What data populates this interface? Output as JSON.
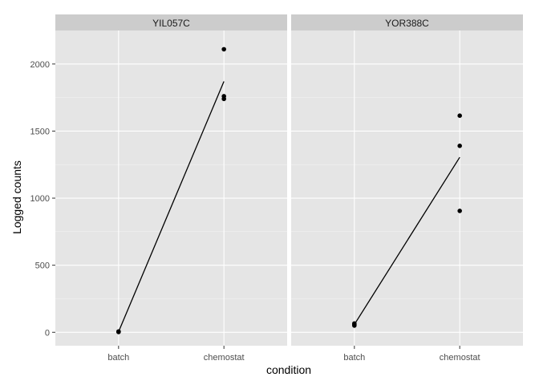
{
  "chart_data": {
    "type": "scatter",
    "xlabel": "condition",
    "ylabel": "Logged counts",
    "categories": [
      "batch",
      "chemostat"
    ],
    "ylim": [
      -100,
      2250
    ],
    "yticks": [
      0,
      500,
      1000,
      1500,
      2000
    ],
    "grid": true,
    "colors": {
      "panel_bg": "#e5e5e5",
      "strip_bg": "#cccccc",
      "grid_major": "#ffffff",
      "grid_minor": "#f2f2f2",
      "points": "#000000",
      "line": "#000000"
    },
    "facets": [
      {
        "label": "YIL057C",
        "points": [
          {
            "x": "batch",
            "y": 2
          },
          {
            "x": "batch",
            "y": 4
          },
          {
            "x": "batch",
            "y": 6
          },
          {
            "x": "chemostat",
            "y": 2110
          },
          {
            "x": "chemostat",
            "y": 1760
          },
          {
            "x": "chemostat",
            "y": 1740
          }
        ],
        "line": [
          {
            "x": "batch",
            "y": 4
          },
          {
            "x": "chemostat",
            "y": 1870
          }
        ]
      },
      {
        "label": "YOR388C",
        "points": [
          {
            "x": "batch",
            "y": 50
          },
          {
            "x": "batch",
            "y": 58
          },
          {
            "x": "batch",
            "y": 66
          },
          {
            "x": "chemostat",
            "y": 1615
          },
          {
            "x": "chemostat",
            "y": 1390
          },
          {
            "x": "chemostat",
            "y": 905
          }
        ],
        "line": [
          {
            "x": "batch",
            "y": 58
          },
          {
            "x": "chemostat",
            "y": 1305
          }
        ]
      }
    ]
  }
}
